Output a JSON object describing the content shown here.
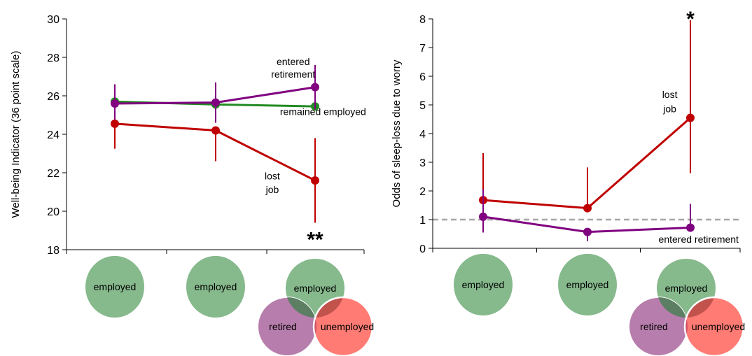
{
  "chart_data": [
    {
      "type": "line",
      "ylabel": "Well-being Indicator (36 point scale)",
      "ylim": [
        18,
        30
      ],
      "yticks": [
        18,
        20,
        22,
        24,
        26,
        28,
        30
      ],
      "x": [
        1,
        2,
        3
      ],
      "series": [
        {
          "key": "employed",
          "color": "#228B22",
          "values": [
            25.7,
            25.55,
            25.45
          ],
          "err_low": [
            null,
            null,
            null
          ],
          "err_high": [
            null,
            null,
            null
          ]
        },
        {
          "key": "retired",
          "color": "#800080",
          "values": [
            25.6,
            25.65,
            26.45
          ],
          "err_low": [
            24.6,
            24.6,
            25.3
          ],
          "err_high": [
            26.6,
            26.7,
            27.6
          ]
        },
        {
          "key": "lost",
          "color": "#C00000",
          "values": [
            24.55,
            24.2,
            21.6
          ],
          "err_low": [
            23.25,
            22.6,
            19.4
          ],
          "err_high": [
            null,
            null,
            23.8
          ]
        }
      ],
      "annotations": [
        {
          "text": "entered",
          "x": 2.78,
          "y": 27.6
        },
        {
          "text": "retirement",
          "x": 2.78,
          "y": 26.95
        },
        {
          "text": "remained employed",
          "x": 3.08,
          "y": 25.0
        },
        {
          "text": "lost",
          "x": 2.57,
          "y": 21.65
        },
        {
          "text": "job",
          "x": 2.57,
          "y": 20.95
        }
      ],
      "significance": {
        "text": "**",
        "x": 3.0,
        "y": 18.45
      },
      "states": [
        [
          "employed"
        ],
        [
          "employed"
        ],
        [
          "employed",
          "retired",
          "unemployed"
        ]
      ]
    },
    {
      "type": "line",
      "ylabel": "Odds of sleep-loss due to worry",
      "ylim": [
        0,
        8
      ],
      "yticks": [
        0,
        1,
        2,
        3,
        4,
        5,
        6,
        7,
        8
      ],
      "x": [
        1,
        2,
        3
      ],
      "reference_line": {
        "y": 1,
        "style": "dashed",
        "color": "#A6A6A6"
      },
      "series": [
        {
          "key": "lost",
          "color": "#C00000",
          "values": [
            1.68,
            1.4,
            4.55
          ],
          "err_low": [
            1.1,
            null,
            2.62
          ],
          "err_high": [
            3.32,
            2.82,
            7.95
          ]
        },
        {
          "key": "retired",
          "color": "#800080",
          "values": [
            1.1,
            0.57,
            0.72
          ],
          "err_low": [
            0.55,
            0.25,
            null
          ],
          "err_high": [
            2.05,
            null,
            1.55
          ]
        }
      ],
      "annotations": [
        {
          "text": "lost",
          "x": 2.8,
          "y": 5.25
        },
        {
          "text": "job",
          "x": 2.8,
          "y": 4.75
        },
        {
          "text": "entered retirement",
          "x": 3.08,
          "y": 0.2
        }
      ],
      "significance": {
        "text": "*",
        "x": 3.0,
        "y": 7.95
      },
      "states": [
        [
          "employed"
        ],
        [
          "employed"
        ],
        [
          "employed",
          "retired",
          "unemployed"
        ]
      ]
    }
  ],
  "state_labels": {
    "employed": "employed",
    "retired": "retired",
    "unemployed": "unemployed"
  },
  "state_colors": {
    "employed": "#86B98C",
    "retired": "#B77DAC",
    "unemployed": "#FF7B74",
    "employed_retired_overlap": "#5C7F64",
    "employed_unemployed_overlap": "#C2524C",
    "retired_unemployed_overlap": "#D14F6A"
  }
}
